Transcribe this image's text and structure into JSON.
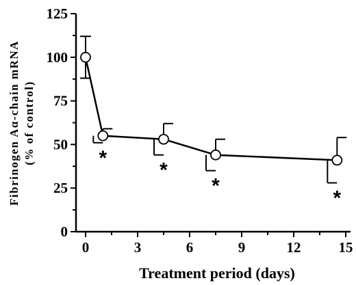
{
  "chart_data": {
    "type": "line",
    "xlabel": "Treatment period (days)",
    "ylabel_line1": "Fibrinogen Aα-chain mRNA",
    "ylabel_line2": "(% of control)",
    "xlim": [
      0,
      15
    ],
    "ylim": [
      0,
      125
    ],
    "x_ticks": [
      "0",
      "3",
      "6",
      "9",
      "12",
      "15"
    ],
    "y_ticks": [
      "0",
      "25",
      "50",
      "75",
      "100",
      "125"
    ],
    "x_tick_values": [
      0,
      3,
      6,
      9,
      12,
      15
    ],
    "y_tick_values": [
      0,
      25,
      50,
      75,
      100,
      125
    ],
    "x_minor_step": 1.5,
    "y_minor_step": 12.5,
    "grid": false,
    "marker": "open-circle",
    "series": [
      {
        "x": [
          0,
          1,
          4.5,
          7.5,
          14.5
        ],
        "values": [
          100,
          55,
          53,
          44,
          41
        ],
        "error": [
          12,
          4,
          9,
          9,
          13
        ],
        "significance": [
          "",
          "*",
          "*",
          "*",
          "*"
        ]
      }
    ]
  }
}
